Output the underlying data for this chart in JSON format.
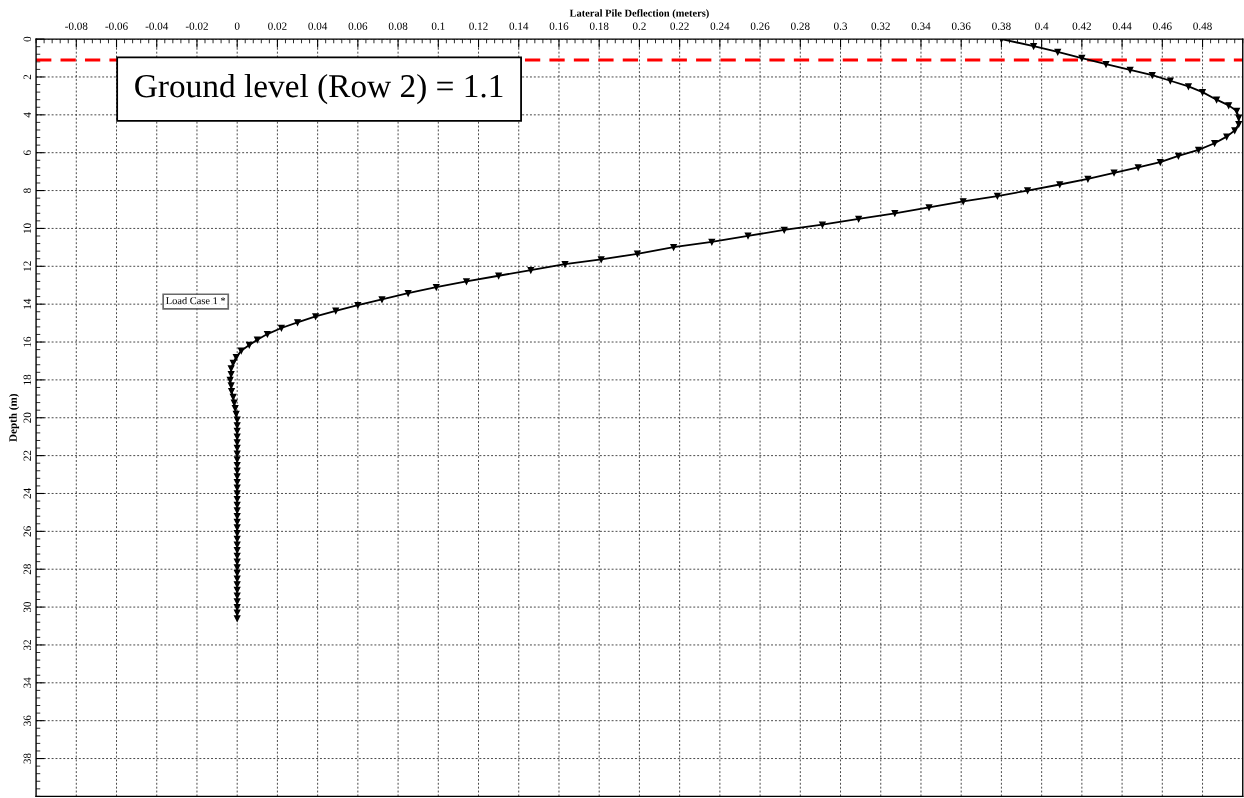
{
  "chart_data": {
    "type": "line",
    "xlabel": "Lateral Pile Deflection (meters)",
    "ylabel": "Depth (m)",
    "xlim": [
      -0.1,
      0.5
    ],
    "xticks": [
      -0.08,
      -0.06,
      -0.04,
      -0.02,
      0,
      0.02,
      0.04,
      0.06,
      0.08,
      0.1,
      0.12,
      0.14,
      0.16,
      0.18,
      0.2,
      0.22,
      0.24,
      0.26,
      0.28,
      0.3,
      0.32,
      0.34,
      0.36,
      0.38,
      0.4,
      0.42,
      0.44,
      0.46,
      0.48
    ],
    "ylim": [
      40,
      0
    ],
    "yticks": [
      0,
      2,
      4,
      6,
      8,
      10,
      12,
      14,
      16,
      18,
      20,
      22,
      24,
      26,
      28,
      30,
      32,
      34,
      36,
      38
    ],
    "grid": true,
    "marker": "triangle",
    "line_style": "solid",
    "legend": "left",
    "series": [
      {
        "name": "Load Case 1 *",
        "color": "#000000",
        "x": [
          0.38,
          0.396,
          0.408,
          0.42,
          0.432,
          0.444,
          0.455,
          0.464,
          0.473,
          0.48,
          0.487,
          0.493,
          0.497,
          0.498,
          0.498,
          0.496,
          0.492,
          0.486,
          0.478,
          0.468,
          0.459,
          0.448,
          0.436,
          0.423,
          0.409,
          0.393,
          0.378,
          0.361,
          0.344,
          0.327,
          0.309,
          0.291,
          0.272,
          0.254,
          0.236,
          0.217,
          0.199,
          0.181,
          0.163,
          0.146,
          0.13,
          0.114,
          0.099,
          0.085,
          0.072,
          0.06,
          0.049,
          0.039,
          0.03,
          0.022,
          0.015,
          0.01,
          0.006,
          0.002,
          -0.0005,
          -0.002,
          -0.003,
          -0.003,
          -0.0035,
          -0.003,
          -0.0028,
          -0.002,
          -0.0015,
          -0.001,
          -0.0005,
          0,
          0,
          0,
          0,
          0,
          0,
          0,
          0,
          0,
          0,
          0,
          0,
          0,
          0,
          0,
          0,
          0,
          0,
          0,
          0,
          0,
          0,
          0,
          0,
          0,
          0,
          0,
          0,
          0,
          0,
          0,
          0,
          0,
          0,
          0,
          0
        ],
        "values": [
          0,
          0.37,
          0.68,
          1.0,
          1.32,
          1.63,
          1.9,
          2.2,
          2.5,
          2.8,
          3.2,
          3.5,
          3.8,
          4.15,
          4.5,
          4.83,
          5.15,
          5.5,
          5.85,
          6.17,
          6.5,
          6.78,
          7.06,
          7.38,
          7.68,
          8.0,
          8.29,
          8.57,
          8.89,
          9.2,
          9.5,
          9.8,
          10.08,
          10.39,
          10.71,
          10.99,
          11.34,
          11.64,
          11.89,
          12.2,
          12.5,
          12.8,
          13.1,
          13.42,
          13.75,
          14.05,
          14.35,
          14.65,
          14.96,
          15.26,
          15.58,
          15.88,
          16.16,
          16.46,
          16.8,
          17.1,
          17.4,
          17.7,
          18.0,
          18.3,
          18.6,
          18.9,
          19.2,
          19.5,
          19.8,
          20.1,
          20.4,
          20.7,
          21.0,
          21.3,
          21.6,
          21.9,
          22.2,
          22.5,
          22.8,
          23.1,
          23.4,
          23.7,
          24.0,
          24.3,
          24.6,
          24.9,
          25.2,
          25.5,
          25.8,
          26.1,
          26.4,
          26.7,
          27.0,
          27.3,
          27.6,
          27.9,
          28.2,
          28.5,
          28.8,
          29.1,
          29.4,
          29.7,
          30.0,
          30.3,
          30.6
        ]
      }
    ],
    "ref_lines": [
      {
        "axis": "y",
        "value": 1.1,
        "label": "Ground level (Row 2) = 1.1",
        "color": "#ff0000",
        "line_style": "dashed"
      }
    ]
  }
}
